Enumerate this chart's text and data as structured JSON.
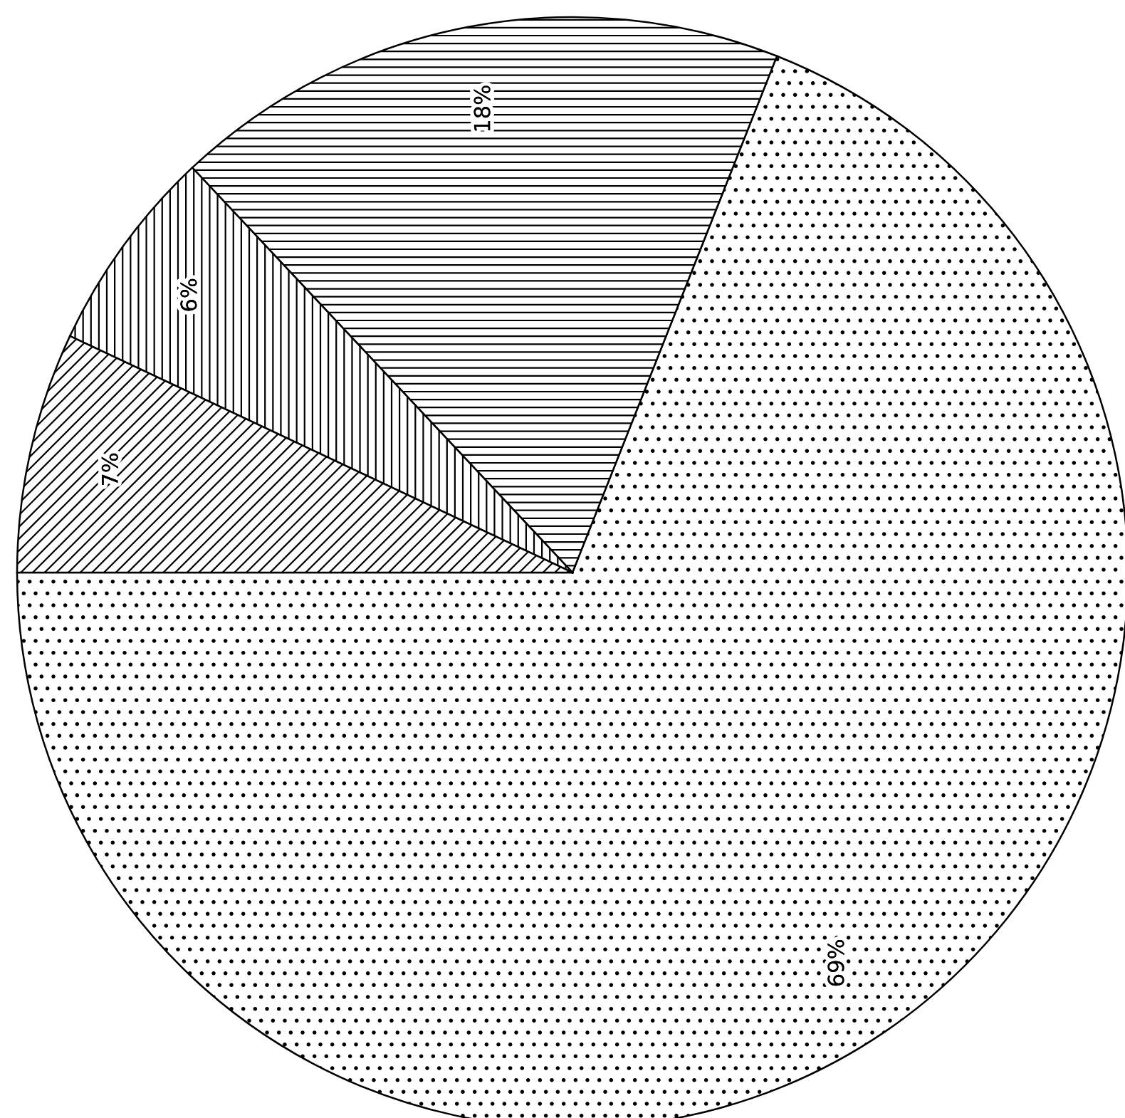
{
  "chart_data": {
    "type": "pie",
    "categories": [
      null,
      null,
      null,
      null
    ],
    "values": [
      69,
      18,
      6,
      7
    ],
    "value_labels": [
      "69%",
      "18%",
      "6%",
      "7%"
    ],
    "legend": false
  }
}
